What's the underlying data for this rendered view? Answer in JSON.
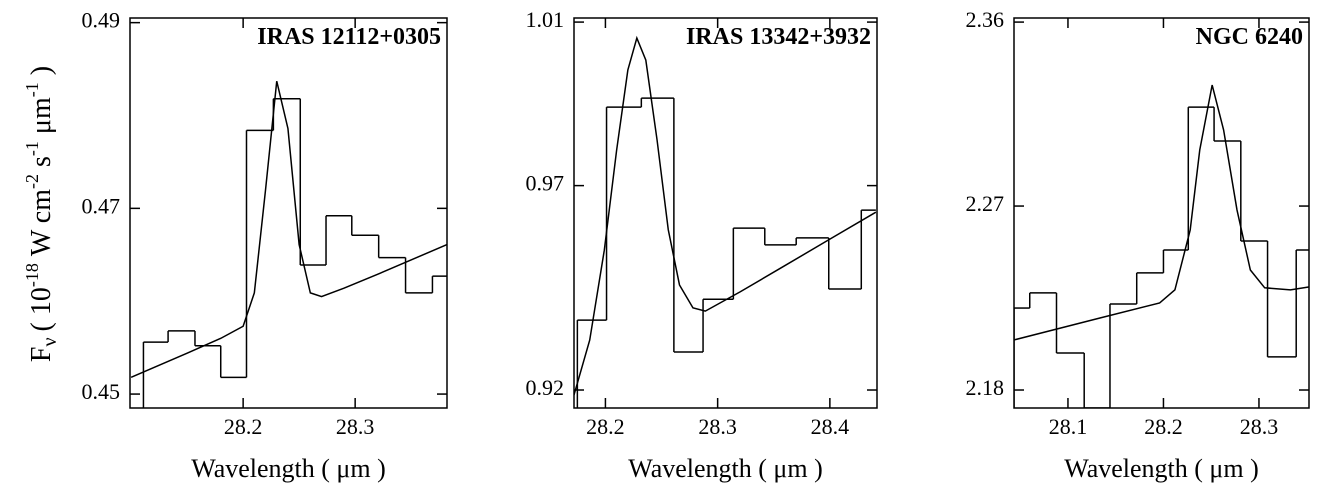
{
  "chart_data": [
    {
      "type": "line",
      "title": "IRAS 12112+0305",
      "xlabel": "Wavelength ( μm )",
      "ylabel": [
        "F",
        "ν",
        "( 10",
        "-18",
        " W cm",
        "-2",
        " s",
        "-1",
        " μm",
        "-1",
        " )"
      ],
      "xlim": [
        28.099,
        28.382
      ],
      "ylim": [
        0.4485,
        0.4905
      ],
      "xticks": [
        28.2,
        28.3
      ],
      "yticks": [
        0.45,
        0.47,
        0.49
      ],
      "series": [
        {
          "style": "steps",
          "color": "#000000",
          "bins": [
            28.111,
            28.133,
            28.157,
            28.18,
            28.203,
            28.227,
            28.251,
            28.274,
            28.297,
            28.321,
            28.345,
            28.369,
            28.382
          ],
          "values": [
            0.4556,
            0.4568,
            0.4552,
            0.4518,
            0.4784,
            0.4818,
            0.4639,
            0.4692,
            0.4671,
            0.4647,
            0.4609,
            0.4627
          ]
        },
        {
          "style": "curve",
          "color": "#000000",
          "x": [
            28.1,
            28.15,
            28.18,
            28.2,
            28.21,
            28.22,
            28.23,
            28.24,
            28.25,
            28.26,
            28.27,
            28.29,
            28.32,
            28.382
          ],
          "values": [
            0.4518,
            0.4544,
            0.456,
            0.4573,
            0.4609,
            0.472,
            0.4837,
            0.4786,
            0.4661,
            0.4609,
            0.4605,
            0.4614,
            0.4629,
            0.4661
          ]
        }
      ]
    },
    {
      "type": "line",
      "title": "IRAS 13342+3932",
      "xlabel": "Wavelength ( μm )",
      "xlim": [
        28.172,
        28.442
      ],
      "ylim": [
        0.9156,
        1.011
      ],
      "xticks": [
        28.2,
        28.3,
        28.4
      ],
      "yticks": [
        0.92,
        0.97,
        1.01
      ],
      "series": [
        {
          "style": "steps",
          "color": "#000000",
          "bins": [
            28.175,
            28.201,
            28.232,
            28.261,
            28.287,
            28.314,
            28.342,
            28.37,
            28.399,
            28.428,
            28.441
          ],
          "values": [
            0.9371,
            0.9892,
            0.9914,
            0.9293,
            0.9422,
            0.9596,
            0.9555,
            0.9572,
            0.9447,
            0.964
          ]
        },
        {
          "style": "curve",
          "color": "#000000",
          "x": [
            28.172,
            28.186,
            28.199,
            28.21,
            28.22,
            28.228,
            28.236,
            28.246,
            28.256,
            28.266,
            28.278,
            28.289,
            28.32,
            28.356,
            28.4,
            28.441
          ],
          "values": [
            0.9188,
            0.9322,
            0.9542,
            0.9787,
            0.9983,
            1.0061,
            1.0007,
            0.9812,
            0.9592,
            0.9457,
            0.9401,
            0.9393,
            0.944,
            0.9498,
            0.9569,
            0.9635
          ]
        }
      ]
    },
    {
      "type": "line",
      "title": "NGC 6240",
      "xlabel": "Wavelength ( μm )",
      "xlim": [
        28.0435,
        28.3524
      ],
      "ylim": [
        2.1712,
        2.362
      ],
      "xticks": [
        28.1,
        28.2,
        28.3
      ],
      "yticks": [
        2.18,
        2.27,
        2.36
      ],
      "series": [
        {
          "style": "steps",
          "color": "#000000",
          "bins": [
            28.0435,
            28.06,
            28.088,
            28.117,
            28.144,
            28.172,
            28.2,
            28.226,
            28.253,
            28.281,
            28.309,
            28.339,
            28.352
          ],
          "values": [
            2.2201,
            2.2275,
            2.1981,
            2.1712,
            2.2221,
            2.2373,
            2.2485,
            2.3184,
            2.3018,
            2.2529,
            2.1962,
            2.2485
          ]
        },
        {
          "style": "curve",
          "color": "#000000",
          "x": [
            28.0435,
            28.134,
            28.196,
            28.212,
            28.228,
            28.238,
            28.251,
            28.263,
            28.277,
            28.291,
            28.306,
            28.333,
            28.352
          ],
          "values": [
            2.2045,
            2.2153,
            2.2226,
            2.229,
            2.2583,
            2.2974,
            2.3292,
            2.3072,
            2.2681,
            2.2387,
            2.23,
            2.229,
            2.2304
          ]
        }
      ]
    }
  ]
}
